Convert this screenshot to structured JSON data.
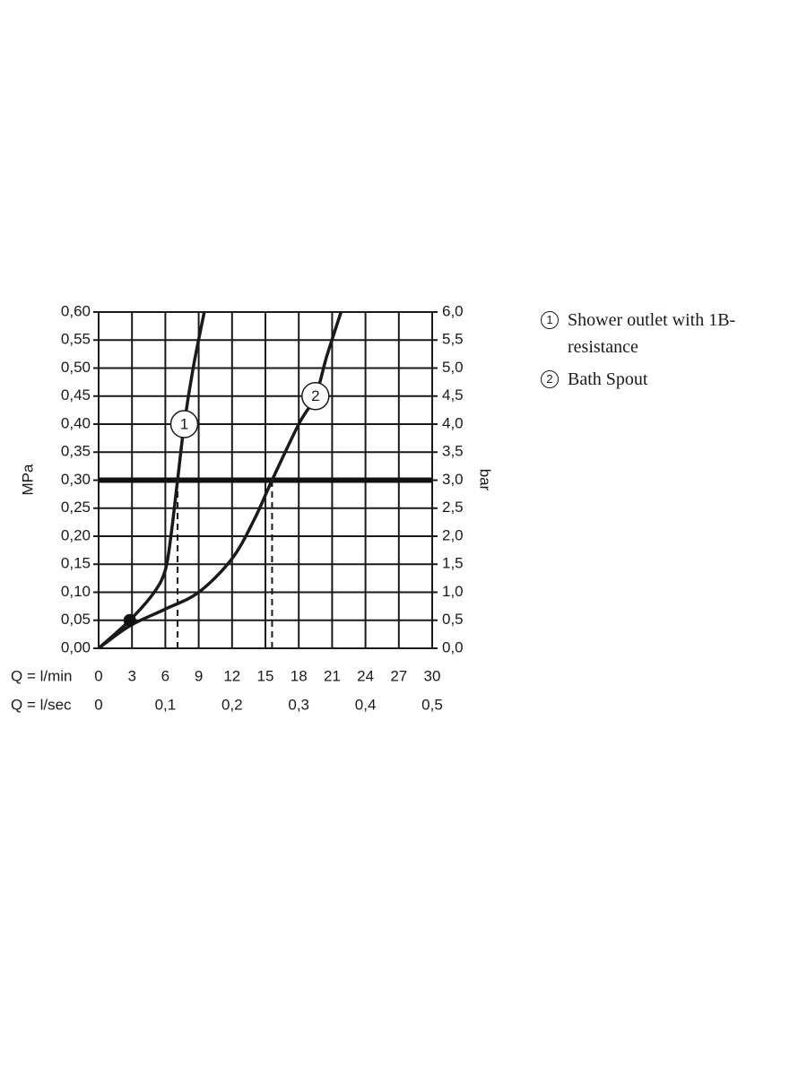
{
  "chart_data": {
    "type": "line",
    "ylabel": "MPa",
    "y2label": "bar",
    "xlabel": "Q = l/min",
    "x2label": "Q = l/sec",
    "xlim": [
      0,
      30
    ],
    "xticks": [
      0,
      3,
      6,
      9,
      12,
      15,
      18,
      21,
      24,
      27,
      30
    ],
    "x2lim": [
      0,
      0.5
    ],
    "x2ticks": [
      0,
      {
        "value": 0.1,
        "label": "0,1"
      },
      {
        "value": 0.2,
        "label": "0,2"
      },
      {
        "value": 0.3,
        "label": "0,3"
      },
      {
        "value": 0.4,
        "label": "0,4"
      },
      {
        "value": 0.5,
        "label": "0,5"
      }
    ],
    "ylim": [
      0,
      0.6
    ],
    "yticks": [
      {
        "value": 0,
        "label": "0,00"
      },
      {
        "value": 0.05,
        "label": "0,05"
      },
      {
        "value": 0.1,
        "label": "0,10"
      },
      {
        "value": 0.15,
        "label": "0,15"
      },
      {
        "value": 0.2,
        "label": "0,20"
      },
      {
        "value": 0.25,
        "label": "0,25"
      },
      {
        "value": 0.3,
        "label": "0,30"
      },
      {
        "value": 0.35,
        "label": "0,35"
      },
      {
        "value": 0.4,
        "label": "0,40"
      },
      {
        "value": 0.45,
        "label": "0,45"
      },
      {
        "value": 0.5,
        "label": "0,50"
      },
      {
        "value": 0.55,
        "label": "0,55"
      },
      {
        "value": 0.6,
        "label": "0,60"
      }
    ],
    "y2lim": [
      0,
      6
    ],
    "y2ticks": [
      {
        "value": 0,
        "label": "0,0"
      },
      {
        "value": 0.5,
        "label": "0,5"
      },
      {
        "value": 1,
        "label": "1,0"
      },
      {
        "value": 1.5,
        "label": "1,5"
      },
      {
        "value": 2,
        "label": "2,0"
      },
      {
        "value": 2.5,
        "label": "2,5"
      },
      {
        "value": 3,
        "label": "3,0"
      },
      {
        "value": 3.5,
        "label": "3,5"
      },
      {
        "value": 4,
        "label": "4,0"
      },
      {
        "value": 4.5,
        "label": "4,5"
      },
      {
        "value": 5,
        "label": "5,0"
      },
      {
        "value": 5.5,
        "label": "5,5"
      },
      {
        "value": 6,
        "label": "6,0"
      }
    ],
    "grid": true,
    "hline": 0.3,
    "vlines": [
      7.1,
      15.6
    ],
    "marker": {
      "x": 2.8,
      "y": 0.05
    },
    "series": [
      {
        "name": "Shower outlet with 1B-resistance",
        "label": "1",
        "color": "#1a1a1a",
        "x": [
          0,
          2.8,
          5,
          6,
          6.5,
          7.1,
          7.7,
          8.5,
          9.5
        ],
        "values": [
          0,
          0.05,
          0.1,
          0.14,
          0.2,
          0.3,
          0.4,
          0.5,
          0.6
        ]
      },
      {
        "name": "Bath Spout",
        "label": "2",
        "color": "#1a1a1a",
        "x": [
          0,
          2.8,
          6,
          9,
          12,
          14,
          15.6,
          18,
          19.5,
          20.5,
          21.8
        ],
        "values": [
          0,
          0.04,
          0.07,
          0.1,
          0.16,
          0.23,
          0.3,
          0.4,
          0.45,
          0.52,
          0.6
        ]
      }
    ]
  }
}
